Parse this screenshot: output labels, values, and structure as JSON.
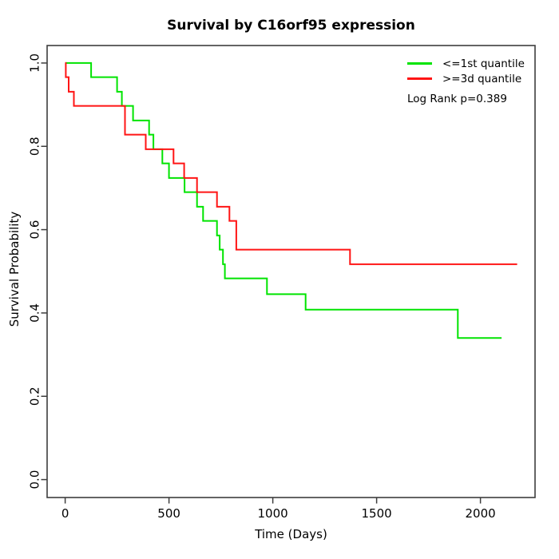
{
  "chart_data": {
    "type": "line",
    "subtype": "kaplan_meier_step",
    "title": "Survival by C16orf95 expression",
    "xlabel": "Time (Days)",
    "ylabel": "Survival Probability",
    "annotation": "Log Rank p=0.389",
    "grid": false,
    "legend_position": "top-right-inside",
    "xlim": [
      -87,
      2263
    ],
    "ylim": [
      -0.043,
      1.042
    ],
    "x_ticks": [
      {
        "v": 0,
        "label": "0"
      },
      {
        "v": 500,
        "label": "500"
      },
      {
        "v": 1000,
        "label": "1000"
      },
      {
        "v": 1500,
        "label": "1500"
      },
      {
        "v": 2000,
        "label": "2000"
      }
    ],
    "y_ticks": [
      {
        "v": 0.0,
        "label": "0.0"
      },
      {
        "v": 0.2,
        "label": "0.2"
      },
      {
        "v": 0.4,
        "label": "0.4"
      },
      {
        "v": 0.6,
        "label": "0.6"
      },
      {
        "v": 0.8,
        "label": "0.8"
      },
      {
        "v": 1.0,
        "label": "1.0"
      }
    ],
    "colors": {
      "low_group": "#00e400",
      "high_group": "#ff1414",
      "axis": "#3d3d3d"
    },
    "legend": [
      {
        "label": "<=1st quantile",
        "color": "#00e400"
      },
      {
        "label": ">=3d quantile",
        "color": "#ff1414"
      }
    ],
    "series": [
      {
        "name": "<=1st quantile",
        "color": "#00e400",
        "steps": [
          [
            0,
            1.0
          ],
          [
            125,
            0.966
          ],
          [
            250,
            0.931
          ],
          [
            273,
            0.897
          ],
          [
            327,
            0.862
          ],
          [
            404,
            0.828
          ],
          [
            425,
            0.793
          ],
          [
            468,
            0.759
          ],
          [
            500,
            0.724
          ],
          [
            575,
            0.69
          ],
          [
            635,
            0.655
          ],
          [
            664,
            0.621
          ],
          [
            731,
            0.586
          ],
          [
            744,
            0.552
          ],
          [
            760,
            0.517
          ],
          [
            769,
            0.483
          ],
          [
            972,
            0.445
          ],
          [
            1158,
            0.408
          ],
          [
            1891,
            0.34
          ],
          [
            2102,
            0.34
          ]
        ]
      },
      {
        "name": ">=3d quantile",
        "color": "#ff1414",
        "steps": [
          [
            0,
            1.0
          ],
          [
            3,
            0.966
          ],
          [
            17,
            0.931
          ],
          [
            42,
            0.897
          ],
          [
            288,
            0.828
          ],
          [
            388,
            0.793
          ],
          [
            522,
            0.759
          ],
          [
            573,
            0.724
          ],
          [
            635,
            0.69
          ],
          [
            731,
            0.655
          ],
          [
            791,
            0.621
          ],
          [
            824,
            0.552
          ],
          [
            1372,
            0.517
          ],
          [
            2177,
            0.517
          ]
        ]
      }
    ]
  }
}
